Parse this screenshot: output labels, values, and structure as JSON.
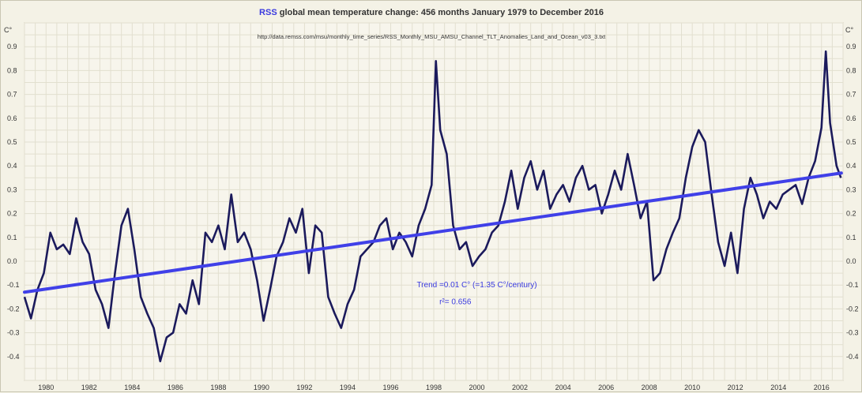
{
  "title": {
    "accent": "RSS",
    "main": " global mean temperature change: 456 months January 1979 to December 2016"
  },
  "subtitle": "http://data.remss.com/msu/monthly_time_series/RSS_Monthly_MSU_AMSU_Channel_TLT_Anomalies_Land_and_Ocean_v03_3.txt",
  "colors": {
    "series": "#1b1a5c",
    "trend": "#4040e8",
    "accent": "#3a3adf",
    "grid": "#e2dfcf",
    "background": "#f4f2e6"
  },
  "chart_data": {
    "type": "line",
    "title": "RSS global mean temperature change: 456 months January 1979 to December 2016",
    "xlabel": "",
    "ylabel": "C°",
    "xlim": [
      1979.0,
      2017.0
    ],
    "ylim": [
      -0.5,
      1.0
    ],
    "grid": true,
    "y_ticks": [
      -0.4,
      -0.3,
      -0.2,
      -0.1,
      0.0,
      0.1,
      0.2,
      0.3,
      0.4,
      0.5,
      0.6,
      0.7,
      0.8,
      0.9
    ],
    "y_tick_labels": [
      "-0.4",
      "-0.3",
      "-0.2",
      "-0.1",
      "0.0",
      "0.1",
      "0.2",
      "0.3",
      "0.4",
      "0.5",
      "0.6",
      "0.7",
      "0.8",
      "0.9"
    ],
    "x_ticks": [
      1980,
      1982,
      1984,
      1986,
      1988,
      1990,
      1992,
      1994,
      1996,
      1998,
      2000,
      2002,
      2004,
      2006,
      2008,
      2010,
      2012,
      2014,
      2016
    ],
    "x_tick_labels": [
      "1980",
      "1982",
      "1984",
      "1986",
      "1988",
      "1990",
      "1992",
      "1994",
      "1996",
      "1998",
      "2000",
      "2002",
      "2004",
      "2006",
      "2008",
      "2010",
      "2012",
      "2014",
      "2016"
    ],
    "series": [
      {
        "x": [
          1979.0,
          1979.3,
          1979.6,
          1979.9,
          1980.2,
          1980.5,
          1980.8,
          1981.1,
          1981.4,
          1981.7,
          1982.0,
          1982.3,
          1982.6,
          1982.9,
          1983.2,
          1983.5,
          1983.8,
          1984.1,
          1984.4,
          1984.7,
          1985.0,
          1985.3,
          1985.6,
          1985.9,
          1986.2,
          1986.5,
          1986.8,
          1987.1,
          1987.4,
          1987.7,
          1988.0,
          1988.3,
          1988.6,
          1988.9,
          1989.2,
          1989.5,
          1989.8,
          1990.1,
          1990.4,
          1990.7,
          1991.0,
          1991.3,
          1991.6,
          1991.9,
          1992.2,
          1992.5,
          1992.8,
          1993.1,
          1993.4,
          1993.7,
          1994.0,
          1994.3,
          1994.6,
          1994.9,
          1995.2,
          1995.5,
          1995.8,
          1996.1,
          1996.4,
          1996.7,
          1997.0,
          1997.3,
          1997.6,
          1997.9,
          1998.1,
          1998.3,
          1998.6,
          1998.9,
          1999.2,
          1999.5,
          1999.8,
          2000.1,
          2000.4,
          2000.7,
          2001.0,
          2001.3,
          2001.6,
          2001.9,
          2002.2,
          2002.5,
          2002.8,
          2003.1,
          2003.4,
          2003.7,
          2004.0,
          2004.3,
          2004.6,
          2004.9,
          2005.2,
          2005.5,
          2005.8,
          2006.1,
          2006.4,
          2006.7,
          2007.0,
          2007.3,
          2007.6,
          2007.9,
          2008.2,
          2008.5,
          2008.8,
          2009.1,
          2009.4,
          2009.7,
          2010.0,
          2010.3,
          2010.6,
          2010.9,
          2011.2,
          2011.5,
          2011.8,
          2012.1,
          2012.4,
          2012.7,
          2013.0,
          2013.3,
          2013.6,
          2013.9,
          2014.2,
          2014.5,
          2014.8,
          2015.1,
          2015.4,
          2015.7,
          2016.0,
          2016.2,
          2016.4,
          2016.7,
          2016.9
        ],
        "values": [
          -0.15,
          -0.24,
          -0.12,
          -0.05,
          0.12,
          0.05,
          0.07,
          0.03,
          0.18,
          0.08,
          0.03,
          -0.12,
          -0.18,
          -0.28,
          -0.05,
          0.15,
          0.22,
          0.05,
          -0.15,
          -0.22,
          -0.28,
          -0.42,
          -0.32,
          -0.3,
          -0.18,
          -0.22,
          -0.08,
          -0.18,
          0.12,
          0.08,
          0.15,
          0.05,
          0.28,
          0.08,
          0.12,
          0.05,
          -0.08,
          -0.25,
          -0.12,
          0.02,
          0.08,
          0.18,
          0.12,
          0.22,
          -0.05,
          0.15,
          0.12,
          -0.15,
          -0.22,
          -0.28,
          -0.18,
          -0.12,
          0.02,
          0.05,
          0.08,
          0.15,
          0.18,
          0.05,
          0.12,
          0.08,
          0.02,
          0.15,
          0.22,
          0.32,
          0.84,
          0.55,
          0.45,
          0.15,
          0.05,
          0.08,
          -0.02,
          0.02,
          0.05,
          0.12,
          0.15,
          0.25,
          0.38,
          0.22,
          0.35,
          0.42,
          0.3,
          0.38,
          0.22,
          0.28,
          0.32,
          0.25,
          0.35,
          0.4,
          0.3,
          0.32,
          0.2,
          0.28,
          0.38,
          0.3,
          0.45,
          0.32,
          0.18,
          0.25,
          -0.08,
          -0.05,
          0.05,
          0.12,
          0.18,
          0.35,
          0.48,
          0.55,
          0.5,
          0.28,
          0.08,
          -0.02,
          0.12,
          -0.05,
          0.22,
          0.35,
          0.28,
          0.18,
          0.25,
          0.22,
          0.28,
          0.3,
          0.32,
          0.24,
          0.35,
          0.42,
          0.56,
          0.88,
          0.58,
          0.4,
          0.35
        ],
        "points": [
          [
            1979.0,
            -0.15
          ],
          [
            1979.3,
            -0.24
          ],
          [
            1979.6,
            -0.12
          ],
          [
            1979.9,
            -0.05
          ],
          [
            1980.2,
            0.12
          ],
          [
            1980.5,
            0.05
          ],
          [
            1980.8,
            0.07
          ],
          [
            1981.1,
            0.03
          ],
          [
            1981.4,
            0.18
          ],
          [
            1981.7,
            0.08
          ],
          [
            1982.0,
            0.03
          ],
          [
            1982.3,
            -0.12
          ],
          [
            1982.6,
            -0.18
          ],
          [
            1982.9,
            -0.28
          ],
          [
            1983.2,
            -0.05
          ],
          [
            1983.5,
            0.15
          ],
          [
            1983.8,
            0.22
          ],
          [
            1984.1,
            0.05
          ],
          [
            1984.4,
            -0.15
          ],
          [
            1984.7,
            -0.22
          ],
          [
            1985.0,
            -0.28
          ],
          [
            1985.3,
            -0.42
          ],
          [
            1985.6,
            -0.32
          ],
          [
            1985.9,
            -0.3
          ],
          [
            1986.2,
            -0.18
          ],
          [
            1986.5,
            -0.22
          ],
          [
            1986.8,
            -0.08
          ],
          [
            1987.1,
            -0.18
          ],
          [
            1987.4,
            0.12
          ],
          [
            1987.7,
            0.08
          ],
          [
            1988.0,
            0.15
          ],
          [
            1988.3,
            0.05
          ],
          [
            1988.6,
            0.28
          ],
          [
            1988.9,
            0.08
          ],
          [
            1989.2,
            0.12
          ],
          [
            1989.5,
            0.05
          ],
          [
            1989.8,
            -0.08
          ],
          [
            1990.1,
            -0.25
          ],
          [
            1990.4,
            -0.12
          ],
          [
            1990.7,
            0.02
          ],
          [
            1991.0,
            0.08
          ],
          [
            1991.3,
            0.18
          ],
          [
            1991.6,
            0.12
          ],
          [
            1991.9,
            0.22
          ],
          [
            1992.2,
            -0.05
          ],
          [
            1992.5,
            0.15
          ],
          [
            1992.8,
            0.12
          ],
          [
            1993.1,
            -0.15
          ],
          [
            1993.4,
            -0.22
          ],
          [
            1993.7,
            -0.28
          ],
          [
            1994.0,
            -0.18
          ],
          [
            1994.3,
            -0.12
          ],
          [
            1994.6,
            0.02
          ],
          [
            1994.9,
            0.05
          ],
          [
            1995.2,
            0.08
          ],
          [
            1995.5,
            0.15
          ],
          [
            1995.8,
            0.18
          ],
          [
            1996.1,
            0.05
          ],
          [
            1996.4,
            0.12
          ],
          [
            1996.7,
            0.08
          ],
          [
            1997.0,
            0.02
          ],
          [
            1997.3,
            0.15
          ],
          [
            1997.6,
            0.22
          ],
          [
            1997.9,
            0.32
          ],
          [
            1998.1,
            0.84
          ],
          [
            1998.3,
            0.55
          ],
          [
            1998.6,
            0.45
          ],
          [
            1998.9,
            0.15
          ],
          [
            1999.2,
            0.05
          ],
          [
            1999.5,
            0.08
          ],
          [
            1999.8,
            -0.02
          ],
          [
            2000.1,
            0.02
          ],
          [
            2000.4,
            0.05
          ],
          [
            2000.7,
            0.12
          ],
          [
            2001.0,
            0.15
          ],
          [
            2001.3,
            0.25
          ],
          [
            2001.6,
            0.38
          ],
          [
            2001.9,
            0.22
          ],
          [
            2002.2,
            0.35
          ],
          [
            2002.5,
            0.42
          ],
          [
            2002.8,
            0.3
          ],
          [
            2003.1,
            0.38
          ],
          [
            2003.4,
            0.22
          ],
          [
            2003.7,
            0.28
          ],
          [
            2004.0,
            0.32
          ],
          [
            2004.3,
            0.25
          ],
          [
            2004.6,
            0.35
          ],
          [
            2004.9,
            0.4
          ],
          [
            2005.2,
            0.3
          ],
          [
            2005.5,
            0.32
          ],
          [
            2005.8,
            0.2
          ],
          [
            2006.1,
            0.28
          ],
          [
            2006.4,
            0.38
          ],
          [
            2006.7,
            0.3
          ],
          [
            2007.0,
            0.45
          ],
          [
            2007.3,
            0.32
          ],
          [
            2007.6,
            0.18
          ],
          [
            2007.9,
            0.25
          ],
          [
            2008.2,
            -0.08
          ],
          [
            2008.5,
            -0.05
          ],
          [
            2008.8,
            0.05
          ],
          [
            2009.1,
            0.12
          ],
          [
            2009.4,
            0.18
          ],
          [
            2009.7,
            0.35
          ],
          [
            2010.0,
            0.48
          ],
          [
            2010.3,
            0.55
          ],
          [
            2010.6,
            0.5
          ],
          [
            2010.9,
            0.28
          ],
          [
            2011.2,
            0.08
          ],
          [
            2011.5,
            -0.02
          ],
          [
            2011.8,
            0.12
          ],
          [
            2012.1,
            -0.05
          ],
          [
            2012.4,
            0.22
          ],
          [
            2012.7,
            0.35
          ],
          [
            2013.0,
            0.28
          ],
          [
            2013.3,
            0.18
          ],
          [
            2013.6,
            0.25
          ],
          [
            2013.9,
            0.22
          ],
          [
            2014.2,
            0.28
          ],
          [
            2014.5,
            0.3
          ],
          [
            2014.8,
            0.32
          ],
          [
            2015.1,
            0.24
          ],
          [
            2015.4,
            0.35
          ],
          [
            2015.7,
            0.42
          ],
          [
            2016.0,
            0.56
          ],
          [
            2016.2,
            0.88
          ],
          [
            2016.4,
            0.58
          ],
          [
            2016.7,
            0.4
          ],
          [
            2016.9,
            0.35
          ]
        ]
      },
      {
        "x": [
          1979.0,
          2016.92
        ],
        "values": [
          -0.13,
          0.37
        ]
      }
    ],
    "annotations": [
      {
        "text": "Trend =0.01 C° (=1.35 C°/century)",
        "x": 2000.0,
        "y": -0.11
      },
      {
        "text": "r²= 0.656",
        "x": 1999.0,
        "y": -0.18
      }
    ]
  }
}
